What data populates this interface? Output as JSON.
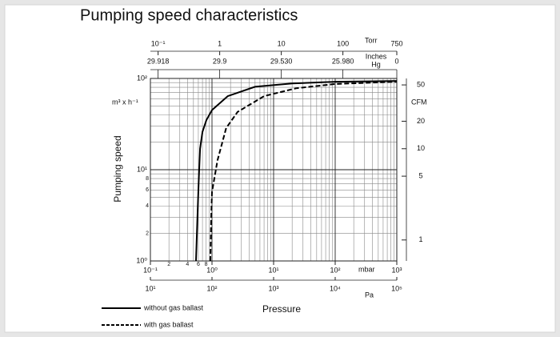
{
  "chart_data": {
    "type": "line",
    "title": "Pumping speed characteristics",
    "x_label": "Pressure",
    "x_unit": "mbar",
    "x4_unit": "Pa",
    "y_label": "Pumping speed",
    "y_unit": "m³ x h⁻¹",
    "y2_unit": "CFM",
    "x2_unit": "Torr",
    "x3_unit": [
      "Inches",
      "Hg"
    ],
    "log_x": true,
    "log_y": true,
    "grid": true,
    "xlim": [
      0.1,
      1000
    ],
    "xticks": [
      {
        "value": 0.1,
        "label": "10⁻¹"
      },
      {
        "value": 1,
        "label": "10⁰"
      },
      {
        "value": 10,
        "label": "10¹"
      },
      {
        "value": 100,
        "label": "10²"
      },
      {
        "value": 1000,
        "label": "10³"
      }
    ],
    "xminor_ticks": [
      {
        "value": 0.2,
        "label": "2"
      },
      {
        "value": 0.4,
        "label": "4"
      },
      {
        "value": 0.6,
        "label": "6"
      },
      {
        "value": 0.8,
        "label": "8"
      }
    ],
    "x2lim": [
      0.075,
      750
    ],
    "x2ticks": [
      {
        "value": 0.1,
        "label": "10⁻¹"
      },
      1,
      10,
      100,
      750
    ],
    "x3ticks": [
      "29.918",
      "29.9",
      "29.530",
      "25.980",
      "0"
    ],
    "x4lim": [
      10,
      100000
    ],
    "x4ticks": [
      {
        "value": 10,
        "label": "10¹"
      },
      {
        "value": 100,
        "label": "10²"
      },
      {
        "value": 1000,
        "label": "10³"
      },
      {
        "value": 10000,
        "label": "10⁴"
      },
      {
        "value": 100000,
        "label": "10⁵"
      }
    ],
    "ylim": [
      1,
      100
    ],
    "yticks": [
      {
        "value": 1,
        "label": "10⁰"
      },
      {
        "value": 10,
        "label": "10¹"
      },
      {
        "value": 100,
        "label": "10²"
      }
    ],
    "yminor_ticks": [
      2,
      4,
      6,
      8
    ],
    "y2lim": [
      0.589,
      58.86
    ],
    "y2ticks": [
      1,
      5,
      10,
      20,
      50
    ],
    "series": [
      {
        "name": "without gas ballast",
        "color": "#000000",
        "style": "solid",
        "x": [
          0.55,
          0.58,
          0.61,
          0.64,
          0.7,
          0.81,
          1,
          1.8,
          5,
          20,
          100,
          1000
        ],
        "values": [
          1,
          3,
          8,
          17,
          26,
          35,
          45,
          64,
          81,
          88,
          92,
          94
        ]
      },
      {
        "name": "with gas ballast",
        "color": "#000000",
        "style": "dashed",
        "x": [
          0.94,
          0.97,
          1,
          1.23,
          1.7,
          2.6,
          7,
          23,
          100,
          1000
        ],
        "values": [
          1,
          3,
          5.7,
          12.7,
          28.6,
          43,
          64,
          78,
          87,
          92
        ]
      }
    ]
  }
}
